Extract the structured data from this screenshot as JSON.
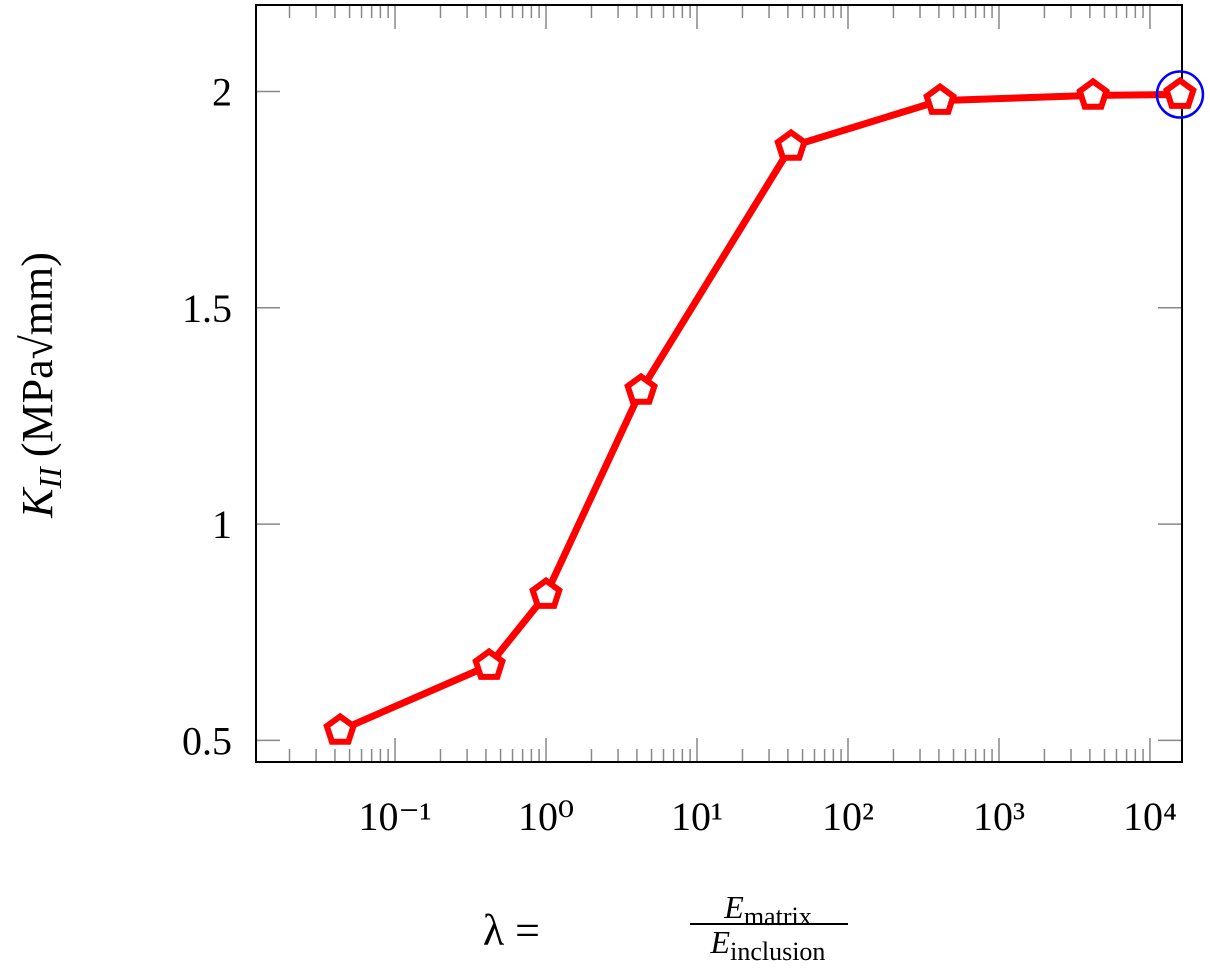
{
  "chart_data": {
    "type": "line",
    "xlabel": {
      "lhs": "λ =",
      "numerator": [
        "E",
        "matrix"
      ],
      "denominator": [
        "E",
        "inclusion"
      ]
    },
    "ylabel": {
      "symbol": "K",
      "subscript": "II",
      "unit": "(MPa√mm)"
    },
    "x": [
      0.0433,
      0.42,
      1,
      4.26,
      42,
      407,
      4200,
      15800
    ],
    "series": [
      {
        "color": "#ff0000",
        "marker": "pentagon",
        "values": [
          0.523,
          0.673,
          0.837,
          1.309,
          1.873,
          1.979,
          1.991,
          1.993
        ]
      }
    ],
    "highlight": {
      "index": 7,
      "color": "#0000ff"
    },
    "xscale": "log",
    "xlim": [
      0.012,
      16300
    ],
    "ylim": [
      0.45,
      2.2
    ],
    "xticks": [
      {
        "value": 0.1,
        "label": "10⁻¹"
      },
      {
        "value": 1,
        "label": "10⁰"
      },
      {
        "value": 10,
        "label": "10¹"
      },
      {
        "value": 100,
        "label": "10²"
      },
      {
        "value": 1000,
        "label": "10³"
      },
      {
        "value": 10000,
        "label": "10⁴"
      }
    ],
    "yticks": [
      0.5,
      1,
      1.5,
      2
    ]
  }
}
